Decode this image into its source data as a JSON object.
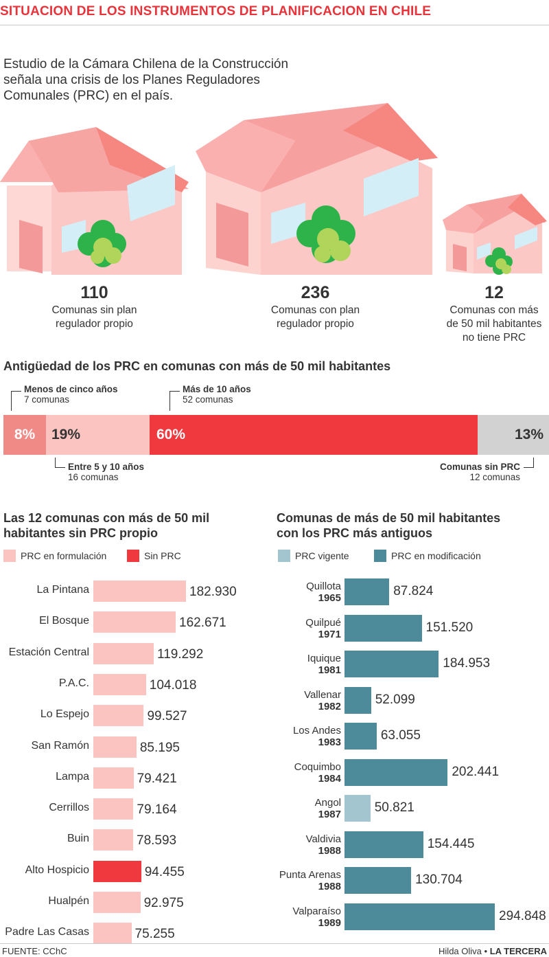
{
  "title": "SITUACION DE LOS INSTRUMENTOS DE PLANIFICACION EN CHILE",
  "intro": "Estudio de la Cámara Chilena de la Construcción señala una crisis de los Planes Reguladores Comunales (PRC) en el país.",
  "stats": [
    {
      "value": "110",
      "label_1": "Comunas sin plan",
      "label_2": "regulador propio",
      "label_3": ""
    },
    {
      "value": "236",
      "label_1": "Comunas con plan",
      "label_2": "regulador propio",
      "label_3": ""
    },
    {
      "value": "12",
      "label_1": "Comunas con más",
      "label_2": "de 50 mil habitantes",
      "label_3": "no tiene PRC"
    }
  ],
  "colors": {
    "accent_red": "#e8333a",
    "pink_light": "#fbc4c0",
    "salmon": "#f08a86",
    "red_bar": "#f0393f",
    "grey_bar": "#d2d2d2",
    "teal": "#4e8b9a",
    "teal_light": "#a2c5cf",
    "house_wall": "#fcc8c6",
    "house_roof": "#f58680",
    "window": "#d3eef6",
    "tree_dark": "#2db34a",
    "tree_light": "#b1d45a"
  },
  "age_section": {
    "title": "Antigüedad de los PRC en comunas con más de 50 mil habitantes",
    "segments": [
      {
        "pct": "8%",
        "share": 8,
        "heading": "Menos de cinco años",
        "count": "7 comunas"
      },
      {
        "pct": "19%",
        "share": 19,
        "heading": "Entre 5 y 10 años",
        "count": "16 comunas"
      },
      {
        "pct": "60%",
        "share": 60,
        "heading": "Más de 10 años",
        "count": "52 comunas"
      },
      {
        "pct": "13%",
        "share": 13,
        "heading": "Comunas sin PRC",
        "count": "12 comunas"
      }
    ]
  },
  "left_section": {
    "title_1": "Las 12 comunas con más de 50 mil",
    "title_2": "habitantes sin PRC propio",
    "legend": [
      {
        "label": "PRC en formulación",
        "color": "#fbc4c0"
      },
      {
        "label": "Sin PRC",
        "color": "#f0393f"
      }
    ]
  },
  "right_section": {
    "title_1": "Comunas de más de 50 mil habitantes",
    "title_2": "con los PRC más antiguos",
    "legend": [
      {
        "label": "PRC vigente",
        "color": "#a2c5cf"
      },
      {
        "label": "PRC en modificación",
        "color": "#4e8b9a"
      }
    ]
  },
  "chart_data": [
    {
      "type": "bar",
      "orientation": "horizontal",
      "title": "Las 12 comunas con más de 50 mil habitantes sin PRC propio",
      "categories": [
        "La Pintana",
        "El Bosque",
        "Estación Central",
        "P.A.C.",
        "Lo Espejo",
        "San Ramón",
        "Lampa",
        "Cerrillos",
        "Buin",
        "Alto Hospicio",
        "Hualpén",
        "Padre Las Casas"
      ],
      "values": [
        182930,
        162671,
        119292,
        104018,
        99527,
        85195,
        79421,
        79164,
        78593,
        94455,
        92975,
        75255
      ],
      "value_labels": [
        "182.930",
        "162.671",
        "119.292",
        "104.018",
        "99.527",
        "85.195",
        "79.421",
        "79.164",
        "78.593",
        "94.455",
        "92.975",
        "75.255"
      ],
      "status": [
        "PRC en formulación",
        "PRC en formulación",
        "PRC en formulación",
        "PRC en formulación",
        "PRC en formulación",
        "PRC en formulación",
        "PRC en formulación",
        "PRC en formulación",
        "PRC en formulación",
        "Sin PRC",
        "PRC en formulación",
        "PRC en formulación"
      ]
    },
    {
      "type": "bar",
      "orientation": "horizontal",
      "title": "Comunas de más de 50 mil habitantes con los PRC más antiguos",
      "categories": [
        "Quillota",
        "Quilpué",
        "Iquique",
        "Vallenar",
        "Los Andes",
        "Coquimbo",
        "Angol",
        "Valdivia",
        "Punta Arenas",
        "Valparaíso"
      ],
      "years": [
        "1965",
        "1971",
        "1981",
        "1982",
        "1983",
        "1984",
        "1987",
        "1988",
        "1988",
        "1989"
      ],
      "values": [
        87824,
        151520,
        184953,
        52099,
        63055,
        202441,
        50821,
        154445,
        130704,
        294848
      ],
      "value_labels": [
        "87.824",
        "151.520",
        "184.953",
        "52.099",
        "63.055",
        "202.441",
        "50.821",
        "154.445",
        "130.704",
        "294.848"
      ],
      "status": [
        "PRC en modificación",
        "PRC en modificación",
        "PRC en modificación",
        "PRC en modificación",
        "PRC en modificación",
        "PRC en modificación",
        "PRC vigente",
        "PRC en modificación",
        "PRC en modificación",
        "PRC en modificación"
      ]
    }
  ],
  "footer": {
    "source": "FUENTE: CChC",
    "author": "Hilda Oliva",
    "separator": "•",
    "outlet": "LA TERCERA"
  }
}
